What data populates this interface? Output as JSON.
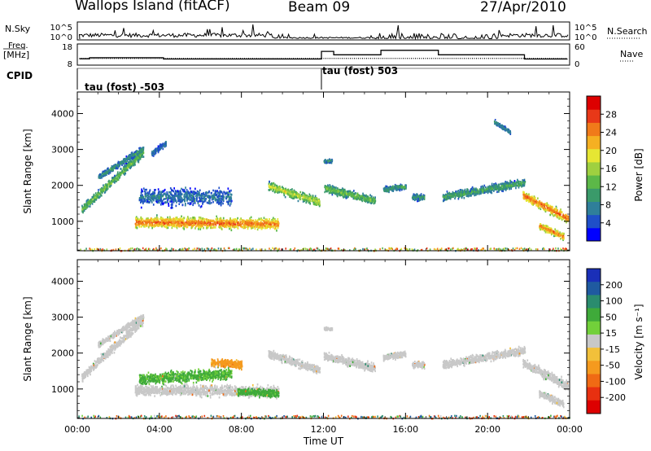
{
  "header": {
    "station": "Wallops Island (fitACF)",
    "beam": "Beam 09",
    "date": "27/Apr/2010"
  },
  "panels": {
    "nsky": {
      "label": "N.Sky",
      "right_label": "N.Search",
      "tick_labels_left": [
        "10^5",
        "10^0"
      ],
      "tick_labels_right": [
        "10^5",
        "10^0"
      ]
    },
    "freq": {
      "label": "Freq.",
      "unit": "[MHz]",
      "right_label": "Nave",
      "ticks_left": [
        "18",
        "8"
      ],
      "ticks_right": [
        "60",
        "0"
      ]
    },
    "cpid": {
      "label": "CPID",
      "modes": [
        {
          "name": "tau (fost) -503",
          "start_hour": 0.0,
          "end_hour": 11.9
        },
        {
          "name": "tau (fost) 503",
          "start_hour": 11.9,
          "end_hour": 24.0
        }
      ]
    }
  },
  "chart_data": [
    {
      "type": "line",
      "name": "freq-nave",
      "x_unit": "hours UT",
      "xlim": [
        0,
        24
      ],
      "series": [
        {
          "name": "Freq",
          "ylim": [
            8,
            18
          ],
          "x": [
            0.1,
            0.6,
            0.6,
            4.2,
            4.2,
            11.9,
            11.9,
            12.5,
            12.5,
            14.8,
            14.8,
            17.6,
            17.6,
            21.8,
            21.8,
            23.9
          ],
          "values": [
            11.0,
            11.0,
            11.5,
            11.5,
            10.9,
            10.9,
            14.5,
            14.5,
            12.9,
            12.9,
            15.0,
            15.0,
            12.9,
            12.9,
            10.9,
            10.9
          ]
        },
        {
          "name": "Nave",
          "ylim": [
            0,
            60
          ],
          "x": [
            0.1,
            23.9
          ],
          "values": [
            19,
            19
          ]
        }
      ]
    },
    {
      "type": "heatmap",
      "name": "power",
      "x_unit": "hours UT",
      "xlim": [
        0,
        24
      ],
      "ylim": [
        180,
        4600
      ],
      "x_ticks": [
        0,
        4,
        8,
        12,
        16,
        20,
        24
      ],
      "y_ticks": [
        1000,
        2000,
        3000,
        4000
      ],
      "ylabel": "Slant Range [km]",
      "colorbar": {
        "label": "Power [dB]",
        "ticks": [
          "4",
          "8",
          "12",
          "16",
          "20",
          "24",
          "28"
        ],
        "colors": [
          "#0000ff",
          "#1f4fc8",
          "#2f7f9a",
          "#3a9a6a",
          "#5cb848",
          "#9fd040",
          "#e6e633",
          "#f5b022",
          "#f07a1a",
          "#e83818",
          "#dd0000"
        ]
      },
      "features": [
        {
          "t0": 0.2,
          "t1": 3.2,
          "r0": 1350,
          "r1": 2950,
          "w": 170,
          "p": 12
        },
        {
          "t0": 1.0,
          "t1": 3.2,
          "r0": 2250,
          "r1": 3050,
          "w": 110,
          "p": 9
        },
        {
          "t0": 3.6,
          "t1": 4.3,
          "r0": 2900,
          "r1": 3200,
          "w": 110,
          "p": 7
        },
        {
          "t0": 2.8,
          "t1": 9.8,
          "r0": 1000,
          "r1": 950,
          "w": 210,
          "p": 21
        },
        {
          "t0": 3.0,
          "t1": 7.5,
          "r0": 1700,
          "r1": 1700,
          "w": 320,
          "p": 7
        },
        {
          "t0": 9.3,
          "t1": 11.8,
          "r0": 2000,
          "r1": 1550,
          "w": 160,
          "p": 15
        },
        {
          "t0": 12.0,
          "t1": 14.5,
          "r0": 1950,
          "r1": 1600,
          "w": 160,
          "p": 12
        },
        {
          "t0": 12.0,
          "t1": 12.4,
          "r0": 2700,
          "r1": 2700,
          "w": 70,
          "p": 9
        },
        {
          "t0": 14.9,
          "t1": 16.0,
          "r0": 1900,
          "r1": 2000,
          "w": 120,
          "p": 9
        },
        {
          "t0": 16.3,
          "t1": 16.9,
          "r0": 1700,
          "r1": 1700,
          "w": 120,
          "p": 9
        },
        {
          "t0": 17.8,
          "t1": 21.8,
          "r0": 1700,
          "r1": 2100,
          "w": 160,
          "p": 10
        },
        {
          "t0": 21.7,
          "t1": 23.9,
          "r0": 1750,
          "r1": 1100,
          "w": 180,
          "p": 21
        },
        {
          "t0": 22.5,
          "t1": 23.7,
          "r0": 900,
          "r1": 600,
          "w": 140,
          "p": 20
        },
        {
          "t0": 20.3,
          "t1": 21.1,
          "r0": 3800,
          "r1": 3500,
          "w": 80,
          "p": 8
        }
      ]
    },
    {
      "type": "heatmap",
      "name": "velocity",
      "x_unit": "hours UT",
      "xlim": [
        0,
        24
      ],
      "ylim": [
        180,
        4600
      ],
      "x_ticks": [
        0,
        4,
        8,
        12,
        16,
        20,
        24
      ],
      "x_tick_labels": [
        "00:00",
        "04:00",
        "08:00",
        "12:00",
        "16:00",
        "20:00",
        "00:00"
      ],
      "y_ticks": [
        1000,
        2000,
        3000,
        4000
      ],
      "ylabel": "Slant Range [km]",
      "xlabel": "Time UT",
      "colorbar": {
        "label": "Velocity [m s^-1]",
        "ticks": [
          "200",
          "100",
          "50",
          "15",
          "-15",
          "-50",
          "-100",
          "-200"
        ],
        "colors": [
          "#1a2fb8",
          "#1f5aa0",
          "#2a8c6e",
          "#3faa3a",
          "#72d03a",
          "#c8c8c8",
          "#f2c03a",
          "#f59a1e",
          "#f06a14",
          "#e83010",
          "#dd0000"
        ]
      },
      "features": [
        {
          "t0": 0.2,
          "t1": 3.2,
          "r0": 1350,
          "r1": 2950,
          "w": 170,
          "v": 0
        },
        {
          "t0": 1.0,
          "t1": 3.2,
          "r0": 2250,
          "r1": 3050,
          "w": 110,
          "v": 0
        },
        {
          "t0": 2.8,
          "t1": 9.8,
          "r0": 1000,
          "r1": 950,
          "w": 210,
          "v": 0
        },
        {
          "t0": 3.0,
          "t1": 7.5,
          "r0": 1300,
          "r1": 1450,
          "w": 220,
          "v": 35
        },
        {
          "t0": 7.8,
          "t1": 9.8,
          "r0": 950,
          "r1": 900,
          "w": 150,
          "v": 40
        },
        {
          "t0": 6.5,
          "t1": 8.0,
          "r0": 1750,
          "r1": 1700,
          "w": 150,
          "v": -40
        },
        {
          "t0": 9.3,
          "t1": 11.8,
          "r0": 2000,
          "r1": 1550,
          "w": 160,
          "v": 0
        },
        {
          "t0": 12.0,
          "t1": 14.5,
          "r0": 1950,
          "r1": 1600,
          "w": 160,
          "v": 0
        },
        {
          "t0": 12.0,
          "t1": 12.4,
          "r0": 2700,
          "r1": 2700,
          "w": 70,
          "v": 0
        },
        {
          "t0": 14.9,
          "t1": 16.0,
          "r0": 1900,
          "r1": 2000,
          "w": 120,
          "v": 0
        },
        {
          "t0": 16.3,
          "t1": 16.9,
          "r0": 1700,
          "r1": 1700,
          "w": 120,
          "v": 0
        },
        {
          "t0": 17.8,
          "t1": 21.8,
          "r0": 1700,
          "r1": 2100,
          "w": 160,
          "v": 0
        },
        {
          "t0": 21.7,
          "t1": 23.9,
          "r0": 1750,
          "r1": 1100,
          "w": 180,
          "v": 0
        },
        {
          "t0": 22.5,
          "t1": 23.7,
          "r0": 900,
          "r1": 600,
          "w": 140,
          "v": 0
        }
      ]
    }
  ]
}
